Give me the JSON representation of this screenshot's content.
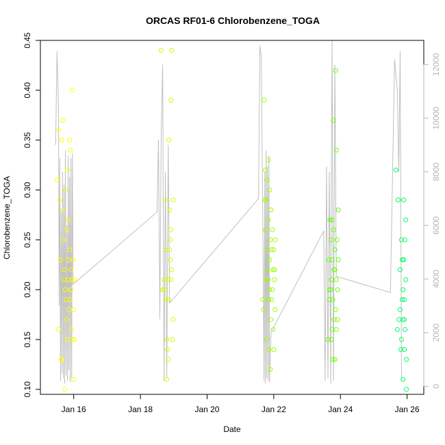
{
  "chart_data": {
    "type": "scatter",
    "title": "ORCAS RF01-6 Chlorobenzene_TOGA",
    "xlabel": "Date",
    "ylabel": "Chlorobenzene_TOGA",
    "xlim": [
      "2016-01-15T00:00",
      "2016-01-26T12:00"
    ],
    "ylim": [
      0.095,
      0.45
    ],
    "y2lim": [
      -300,
      12900
    ],
    "x_ticks": [
      {
        "at": "2016-01-16T00:00",
        "label": "Jan 16"
      },
      {
        "at": "2016-01-18T00:00",
        "label": "Jan 18"
      },
      {
        "at": "2016-01-20T00:00",
        "label": "Jan 20"
      },
      {
        "at": "2016-01-22T00:00",
        "label": "Jan 22"
      },
      {
        "at": "2016-01-24T00:00",
        "label": "Jan 24"
      },
      {
        "at": "2016-01-26T00:00",
        "label": "Jan 26"
      }
    ],
    "y_ticks": [
      "0.10",
      "0.15",
      "0.20",
      "0.25",
      "0.30",
      "0.35",
      "0.40",
      "0.45"
    ],
    "y2_ticks": [
      "0",
      "2000",
      "4000",
      "6000",
      "8000",
      "10000",
      "12000"
    ],
    "grid": false,
    "series": [
      {
        "color": "#ffff00",
        "points": [
          [
            "2016-01-15T12:00",
            0.31
          ],
          [
            "2016-01-15T13:00",
            0.16
          ],
          [
            "2016-01-15T13:30",
            0.36
          ],
          [
            "2016-01-15T14:00",
            0.29
          ],
          [
            "2016-01-15T14:30",
            0.23
          ],
          [
            "2016-01-15T15:00",
            0.13
          ],
          [
            "2016-01-15T15:30",
            0.35
          ],
          [
            "2016-01-15T16:00",
            0.37
          ],
          [
            "2016-01-15T16:30",
            0.25
          ],
          [
            "2016-01-15T17:00",
            0.21
          ],
          [
            "2016-01-15T17:00",
            0.22
          ],
          [
            "2016-01-15T17:30",
            0.1
          ],
          [
            "2016-01-15T18:00",
            0.3
          ],
          [
            "2016-01-15T18:30",
            0.19
          ],
          [
            "2016-01-15T19:00",
            0.26
          ],
          [
            "2016-01-15T19:00",
            0.17
          ],
          [
            "2016-01-15T19:30",
            0.15
          ],
          [
            "2016-01-15T20:00",
            0.23
          ],
          [
            "2016-01-15T20:00",
            0.21
          ],
          [
            "2016-01-15T20:30",
            0.18
          ],
          [
            "2016-01-15T21:00",
            0.35
          ],
          [
            "2016-01-15T21:00",
            0.24
          ],
          [
            "2016-01-15T21:30",
            0.34
          ],
          [
            "2016-01-15T22:00",
            0.22
          ],
          [
            "2016-01-15T22:00",
            0.2
          ],
          [
            "2016-01-15T22:30",
            0.16
          ],
          [
            "2016-01-15T23:00",
            0.4
          ],
          [
            "2016-01-15T23:00",
            0.21
          ],
          [
            "2016-01-15T23:30",
            0.23
          ],
          [
            "2016-01-15T23:30",
            0.15
          ],
          [
            "2016-01-16T00:00",
            0.18
          ],
          [
            "2016-01-16T00:00",
            0.11
          ],
          [
            "2016-01-16T00:30",
            0.21
          ],
          [
            "2016-01-16T00:30",
            0.15
          ],
          [
            "2016-01-15T20:00",
            0.27
          ],
          [
            "2016-01-15T18:00",
            0.2
          ],
          [
            "2016-01-15T16:00",
            0.28
          ],
          [
            "2016-01-15T19:30",
            0.32
          ],
          [
            "2016-01-15T21:30",
            0.19
          ],
          [
            "2016-01-15T15:30",
            0.13
          ]
        ]
      },
      {
        "color": "#ccff00",
        "points": [
          [
            "2016-01-18T15:00",
            0.44
          ],
          [
            "2016-01-18T16:00",
            0.2
          ],
          [
            "2016-01-18T17:00",
            0.21
          ],
          [
            "2016-01-18T17:30",
            0.29
          ],
          [
            "2016-01-18T18:00",
            0.24
          ],
          [
            "2016-01-18T18:30",
            0.19
          ],
          [
            "2016-01-18T19:00",
            0.11
          ],
          [
            "2016-01-18T19:30",
            0.14
          ],
          [
            "2016-01-18T20:00",
            0.13
          ],
          [
            "2016-01-18T20:00",
            0.21
          ],
          [
            "2016-01-18T20:30",
            0.35
          ],
          [
            "2016-01-18T21:00",
            0.28
          ],
          [
            "2016-01-18T21:00",
            0.24
          ],
          [
            "2016-01-18T21:30",
            0.25
          ],
          [
            "2016-01-18T21:30",
            0.23
          ],
          [
            "2016-01-18T22:00",
            0.39
          ],
          [
            "2016-01-18T22:00",
            0.26
          ],
          [
            "2016-01-18T22:30",
            0.44
          ],
          [
            "2016-01-18T22:30",
            0.22
          ],
          [
            "2016-01-18T23:00",
            0.15
          ],
          [
            "2016-01-18T23:30",
            0.17
          ],
          [
            "2016-01-18T23:30",
            0.29
          ],
          [
            "2016-01-18T17:00",
            0.2
          ],
          [
            "2016-01-18T19:00",
            0.15
          ],
          [
            "2016-01-18T20:30",
            0.19
          ],
          [
            "2016-01-18T22:00",
            0.21
          ]
        ]
      },
      {
        "color": "#99ff00",
        "points": [
          [
            "2016-01-21T16:00",
            0.19
          ],
          [
            "2016-01-21T16:30",
            0.18
          ],
          [
            "2016-01-21T17:00",
            0.39
          ],
          [
            "2016-01-21T17:30",
            0.29
          ],
          [
            "2016-01-21T18:00",
            0.26
          ],
          [
            "2016-01-21T18:00",
            0.32
          ],
          [
            "2016-01-21T18:30",
            0.21
          ],
          [
            "2016-01-21T19:00",
            0.24
          ],
          [
            "2016-01-21T19:00",
            0.15
          ],
          [
            "2016-01-21T19:30",
            0.22
          ],
          [
            "2016-01-21T19:30",
            0.31
          ],
          [
            "2016-01-21T20:00",
            0.33
          ],
          [
            "2016-01-21T20:00",
            0.27
          ],
          [
            "2016-01-21T20:30",
            0.14
          ],
          [
            "2016-01-21T20:30",
            0.19
          ],
          [
            "2016-01-21T21:00",
            0.3
          ],
          [
            "2016-01-21T21:00",
            0.23
          ],
          [
            "2016-01-21T21:30",
            0.12
          ],
          [
            "2016-01-21T21:30",
            0.25
          ],
          [
            "2016-01-21T22:00",
            0.28
          ],
          [
            "2016-01-21T22:00",
            0.17
          ],
          [
            "2016-01-21T22:30",
            0.24
          ],
          [
            "2016-01-21T23:00",
            0.2
          ],
          [
            "2016-01-21T23:00",
            0.26
          ],
          [
            "2016-01-21T23:30",
            0.16
          ],
          [
            "2016-01-21T23:30",
            0.22
          ],
          [
            "2016-01-22T00:00",
            0.24
          ],
          [
            "2016-01-22T00:00",
            0.14
          ],
          [
            "2016-01-22T00:30",
            0.21
          ],
          [
            "2016-01-22T01:00",
            0.25
          ],
          [
            "2016-01-22T01:00",
            0.18
          ],
          [
            "2016-01-21T18:30",
            0.29
          ],
          [
            "2016-01-21T20:00",
            0.21
          ],
          [
            "2016-01-21T21:00",
            0.2
          ],
          [
            "2016-01-21T22:30",
            0.19
          ],
          [
            "2016-01-22T00:30",
            0.22
          ]
        ]
      },
      {
        "color": "#66ff00",
        "points": [
          [
            "2016-01-23T15:00",
            0.15
          ],
          [
            "2016-01-23T15:30",
            0.23
          ],
          [
            "2016-01-23T16:00",
            0.19
          ],
          [
            "2016-01-23T16:30",
            0.27
          ],
          [
            "2016-01-23T17:00",
            0.25
          ],
          [
            "2016-01-23T17:00",
            0.2
          ],
          [
            "2016-01-23T17:30",
            0.15
          ],
          [
            "2016-01-23T17:30",
            0.21
          ],
          [
            "2016-01-23T18:00",
            0.16
          ],
          [
            "2016-01-23T18:00",
            0.23
          ],
          [
            "2016-01-23T18:30",
            0.13
          ],
          [
            "2016-01-23T18:30",
            0.19
          ],
          [
            "2016-01-23T19:00",
            0.37
          ],
          [
            "2016-01-23T19:00",
            0.26
          ],
          [
            "2016-01-23T19:30",
            0.22
          ],
          [
            "2016-01-23T19:30",
            0.17
          ],
          [
            "2016-01-23T20:00",
            0.24
          ],
          [
            "2016-01-23T20:00",
            0.13
          ],
          [
            "2016-01-23T20:30",
            0.42
          ],
          [
            "2016-01-23T20:30",
            0.18
          ],
          [
            "2016-01-23T21:00",
            0.34
          ],
          [
            "2016-01-23T21:00",
            0.21
          ],
          [
            "2016-01-23T21:30",
            0.25
          ],
          [
            "2016-01-23T22:00",
            0.17
          ],
          [
            "2016-01-23T22:00",
            0.2
          ],
          [
            "2016-01-23T22:30",
            0.28
          ],
          [
            "2016-01-23T22:30",
            0.23
          ],
          [
            "2016-01-23T16:00",
            0.2
          ],
          [
            "2016-01-23T18:00",
            0.27
          ],
          [
            "2016-01-23T20:00",
            0.22
          ],
          [
            "2016-01-23T21:00",
            0.16
          ]
        ]
      },
      {
        "color": "#00ff66",
        "points": [
          [
            "2016-01-25T16:00",
            0.32
          ],
          [
            "2016-01-25T17:00",
            0.16
          ],
          [
            "2016-01-25T17:30",
            0.29
          ],
          [
            "2016-01-25T18:00",
            0.17
          ],
          [
            "2016-01-25T19:00",
            0.22
          ],
          [
            "2016-01-25T19:30",
            0.14
          ],
          [
            "2016-01-25T20:00",
            0.25
          ],
          [
            "2016-01-25T20:00",
            0.15
          ],
          [
            "2016-01-25T20:30",
            0.23
          ],
          [
            "2016-01-25T20:30",
            0.19
          ],
          [
            "2016-01-25T21:00",
            0.11
          ],
          [
            "2016-01-25T21:00",
            0.17
          ],
          [
            "2016-01-25T21:30",
            0.29
          ],
          [
            "2016-01-25T21:30",
            0.23
          ],
          [
            "2016-01-25T22:00",
            0.19
          ],
          [
            "2016-01-25T22:00",
            0.14
          ],
          [
            "2016-01-25T22:30",
            0.16
          ],
          [
            "2016-01-25T22:30",
            0.25
          ],
          [
            "2016-01-25T23:00",
            0.21
          ],
          [
            "2016-01-25T23:00",
            0.27
          ],
          [
            "2016-01-25T23:30",
            0.13
          ],
          [
            "2016-01-25T23:30",
            0.1
          ],
          [
            "2016-01-25T19:00",
            0.18
          ],
          [
            "2016-01-25T21:00",
            0.2
          ],
          [
            "2016-01-25T22:00",
            0.17
          ]
        ]
      }
    ],
    "altitude_line": {
      "color": "#bfbfbf",
      "points": [
        [
          "2016-01-15T11:00",
          9000
        ],
        [
          "2016-01-15T12:00",
          12500
        ],
        [
          "2016-01-15T13:00",
          10500
        ],
        [
          "2016-01-15T13:30",
          3000
        ],
        [
          "2016-01-15T14:00",
          8500
        ],
        [
          "2016-01-15T14:30",
          200
        ],
        [
          "2016-01-15T15:00",
          6500
        ],
        [
          "2016-01-15T15:30",
          500
        ],
        [
          "2016-01-15T16:00",
          8000
        ],
        [
          "2016-01-15T16:30",
          300
        ],
        [
          "2016-01-15T17:00",
          7500
        ],
        [
          "2016-01-15T17:30",
          100
        ],
        [
          "2016-01-15T18:00",
          8800
        ],
        [
          "2016-01-15T18:30",
          400
        ],
        [
          "2016-01-15T19:00",
          6000
        ],
        [
          "2016-01-15T19:30",
          200
        ],
        [
          "2016-01-15T20:00",
          8600
        ],
        [
          "2016-01-15T20:30",
          600
        ],
        [
          "2016-01-15T21:00",
          7800
        ],
        [
          "2016-01-15T21:30",
          150
        ],
        [
          "2016-01-15T22:00",
          8500
        ],
        [
          "2016-01-15T22:30",
          300
        ],
        [
          "2016-01-15T23:00",
          8700
        ],
        [
          "2016-01-15T23:30",
          3800
        ],
        [
          "2016-01-18T12:00",
          6500
        ],
        [
          "2016-01-18T13:00",
          9200
        ],
        [
          "2016-01-18T14:00",
          2500
        ],
        [
          "2016-01-18T15:00",
          9500
        ],
        [
          "2016-01-18T16:00",
          12000
        ],
        [
          "2016-01-18T17:00",
          200
        ],
        [
          "2016-01-18T18:00",
          8000
        ],
        [
          "2016-01-18T19:00",
          300
        ],
        [
          "2016-01-18T20:00",
          9000
        ],
        [
          "2016-01-18T21:00",
          3100
        ],
        [
          "2016-01-21T13:00",
          7000
        ],
        [
          "2016-01-21T14:00",
          12700
        ],
        [
          "2016-01-21T15:00",
          12300
        ],
        [
          "2016-01-21T16:00",
          7000
        ],
        [
          "2016-01-21T17:00",
          200
        ],
        [
          "2016-01-21T17:30",
          8000
        ],
        [
          "2016-01-21T18:00",
          100
        ],
        [
          "2016-01-21T18:30",
          8800
        ],
        [
          "2016-01-21T19:00",
          300
        ],
        [
          "2016-01-21T19:30",
          8200
        ],
        [
          "2016-01-21T20:00",
          200
        ],
        [
          "2016-01-21T20:30",
          8600
        ],
        [
          "2016-01-21T21:00",
          150
        ],
        [
          "2016-01-21T22:00",
          2000
        ],
        [
          "2016-01-23T12:00",
          5800
        ],
        [
          "2016-01-23T13:00",
          200
        ],
        [
          "2016-01-23T14:00",
          8200
        ],
        [
          "2016-01-23T15:00",
          300
        ],
        [
          "2016-01-23T16:00",
          8000
        ],
        [
          "2016-01-23T17:00",
          100
        ],
        [
          "2016-01-23T17:30",
          8600
        ],
        [
          "2016-01-23T18:00",
          12900
        ],
        [
          "2016-01-23T19:00",
          200
        ],
        [
          "2016-01-23T20:00",
          12000
        ],
        [
          "2016-01-23T21:00",
          4100
        ],
        [
          "2016-01-25T12:00",
          3500
        ],
        [
          "2016-01-25T15:00",
          12200
        ],
        [
          "2016-01-25T17:00",
          11000
        ],
        [
          "2016-01-25T18:00",
          8000
        ],
        [
          "2016-01-25T19:00",
          12500
        ],
        [
          "2016-01-25T20:00",
          300
        ]
      ]
    }
  }
}
